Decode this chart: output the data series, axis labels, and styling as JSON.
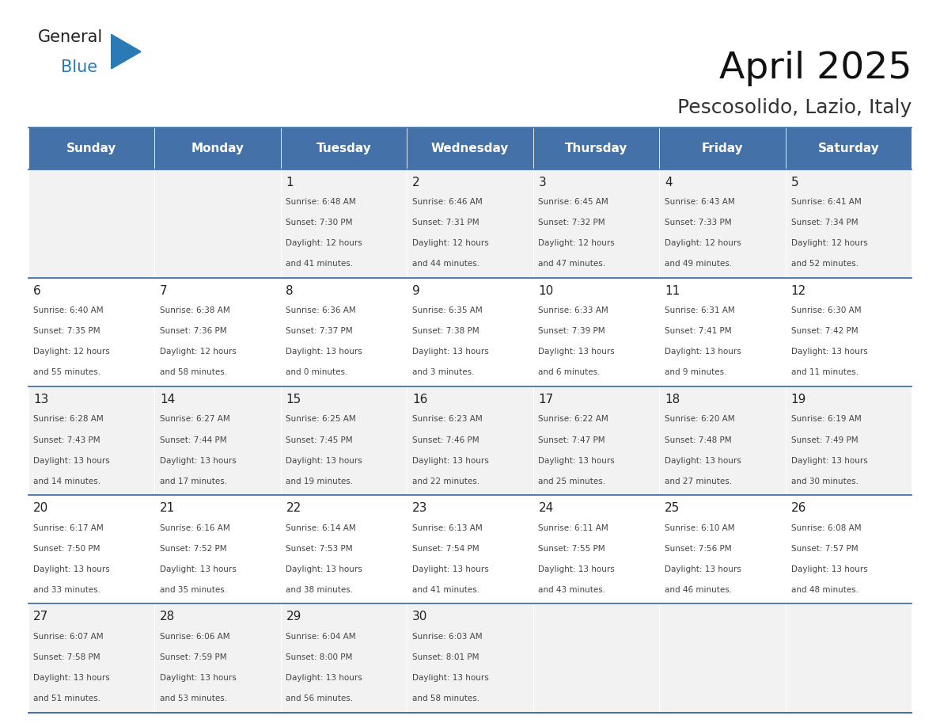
{
  "title": "April 2025",
  "subtitle": "Pescosolido, Lazio, Italy",
  "days_of_week": [
    "Sunday",
    "Monday",
    "Tuesday",
    "Wednesday",
    "Thursday",
    "Friday",
    "Saturday"
  ],
  "header_bg": "#4472a8",
  "header_text": "#ffffff",
  "row_bg_odd": "#f2f2f2",
  "row_bg_even": "#ffffff",
  "cell_text_color": "#333333",
  "day_num_color": "#222222",
  "border_color": "#4472a8",
  "weeks": [
    {
      "days": [
        {
          "date": "",
          "info": ""
        },
        {
          "date": "",
          "info": ""
        },
        {
          "date": "1",
          "info": "Sunrise: 6:48 AM\nSunset: 7:30 PM\nDaylight: 12 hours\nand 41 minutes."
        },
        {
          "date": "2",
          "info": "Sunrise: 6:46 AM\nSunset: 7:31 PM\nDaylight: 12 hours\nand 44 minutes."
        },
        {
          "date": "3",
          "info": "Sunrise: 6:45 AM\nSunset: 7:32 PM\nDaylight: 12 hours\nand 47 minutes."
        },
        {
          "date": "4",
          "info": "Sunrise: 6:43 AM\nSunset: 7:33 PM\nDaylight: 12 hours\nand 49 minutes."
        },
        {
          "date": "5",
          "info": "Sunrise: 6:41 AM\nSunset: 7:34 PM\nDaylight: 12 hours\nand 52 minutes."
        }
      ]
    },
    {
      "days": [
        {
          "date": "6",
          "info": "Sunrise: 6:40 AM\nSunset: 7:35 PM\nDaylight: 12 hours\nand 55 minutes."
        },
        {
          "date": "7",
          "info": "Sunrise: 6:38 AM\nSunset: 7:36 PM\nDaylight: 12 hours\nand 58 minutes."
        },
        {
          "date": "8",
          "info": "Sunrise: 6:36 AM\nSunset: 7:37 PM\nDaylight: 13 hours\nand 0 minutes."
        },
        {
          "date": "9",
          "info": "Sunrise: 6:35 AM\nSunset: 7:38 PM\nDaylight: 13 hours\nand 3 minutes."
        },
        {
          "date": "10",
          "info": "Sunrise: 6:33 AM\nSunset: 7:39 PM\nDaylight: 13 hours\nand 6 minutes."
        },
        {
          "date": "11",
          "info": "Sunrise: 6:31 AM\nSunset: 7:41 PM\nDaylight: 13 hours\nand 9 minutes."
        },
        {
          "date": "12",
          "info": "Sunrise: 6:30 AM\nSunset: 7:42 PM\nDaylight: 13 hours\nand 11 minutes."
        }
      ]
    },
    {
      "days": [
        {
          "date": "13",
          "info": "Sunrise: 6:28 AM\nSunset: 7:43 PM\nDaylight: 13 hours\nand 14 minutes."
        },
        {
          "date": "14",
          "info": "Sunrise: 6:27 AM\nSunset: 7:44 PM\nDaylight: 13 hours\nand 17 minutes."
        },
        {
          "date": "15",
          "info": "Sunrise: 6:25 AM\nSunset: 7:45 PM\nDaylight: 13 hours\nand 19 minutes."
        },
        {
          "date": "16",
          "info": "Sunrise: 6:23 AM\nSunset: 7:46 PM\nDaylight: 13 hours\nand 22 minutes."
        },
        {
          "date": "17",
          "info": "Sunrise: 6:22 AM\nSunset: 7:47 PM\nDaylight: 13 hours\nand 25 minutes."
        },
        {
          "date": "18",
          "info": "Sunrise: 6:20 AM\nSunset: 7:48 PM\nDaylight: 13 hours\nand 27 minutes."
        },
        {
          "date": "19",
          "info": "Sunrise: 6:19 AM\nSunset: 7:49 PM\nDaylight: 13 hours\nand 30 minutes."
        }
      ]
    },
    {
      "days": [
        {
          "date": "20",
          "info": "Sunrise: 6:17 AM\nSunset: 7:50 PM\nDaylight: 13 hours\nand 33 minutes."
        },
        {
          "date": "21",
          "info": "Sunrise: 6:16 AM\nSunset: 7:52 PM\nDaylight: 13 hours\nand 35 minutes."
        },
        {
          "date": "22",
          "info": "Sunrise: 6:14 AM\nSunset: 7:53 PM\nDaylight: 13 hours\nand 38 minutes."
        },
        {
          "date": "23",
          "info": "Sunrise: 6:13 AM\nSunset: 7:54 PM\nDaylight: 13 hours\nand 41 minutes."
        },
        {
          "date": "24",
          "info": "Sunrise: 6:11 AM\nSunset: 7:55 PM\nDaylight: 13 hours\nand 43 minutes."
        },
        {
          "date": "25",
          "info": "Sunrise: 6:10 AM\nSunset: 7:56 PM\nDaylight: 13 hours\nand 46 minutes."
        },
        {
          "date": "26",
          "info": "Sunrise: 6:08 AM\nSunset: 7:57 PM\nDaylight: 13 hours\nand 48 minutes."
        }
      ]
    },
    {
      "days": [
        {
          "date": "27",
          "info": "Sunrise: 6:07 AM\nSunset: 7:58 PM\nDaylight: 13 hours\nand 51 minutes."
        },
        {
          "date": "28",
          "info": "Sunrise: 6:06 AM\nSunset: 7:59 PM\nDaylight: 13 hours\nand 53 minutes."
        },
        {
          "date": "29",
          "info": "Sunrise: 6:04 AM\nSunset: 8:00 PM\nDaylight: 13 hours\nand 56 minutes."
        },
        {
          "date": "30",
          "info": "Sunrise: 6:03 AM\nSunset: 8:01 PM\nDaylight: 13 hours\nand 58 minutes."
        },
        {
          "date": "",
          "info": ""
        },
        {
          "date": "",
          "info": ""
        },
        {
          "date": "",
          "info": ""
        }
      ]
    }
  ],
  "logo_general_color": "#222222",
  "logo_blue_color": "#2a7ab5",
  "logo_triangle_color": "#2a7ab5"
}
